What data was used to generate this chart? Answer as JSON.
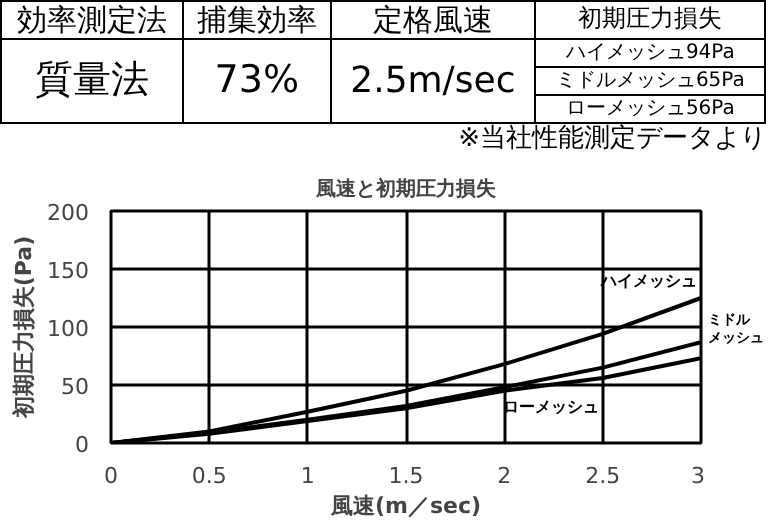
{
  "chart_data": {
    "type": "line",
    "title": "風速と初期圧力損失",
    "xlabel": "風速(m／sec)",
    "ylabel": "初期圧力損失(Pa)",
    "annotations": [
      "効率測定法",
      "捕集効率",
      "定格風速",
      "初期圧力損失",
      "質量法",
      "73%",
      "2.5m/sec",
      "ハイメッシュ94Pa",
      "ミドルメッシュ65Pa",
      "ローメッシュ56Pa",
      "※当社性能測定データより"
    ],
    "x": [
      0,
      0.5,
      1,
      1.5,
      2,
      2.5,
      3
    ],
    "series": [
      {
        "name": "ハイメッシュ",
        "color": "#000000",
        "values": [
          0,
          10,
          27,
          45,
          68,
          94,
          125
        ]
      },
      {
        "name": "ミドルメッシュ",
        "color": "#000000",
        "values": [
          0,
          9,
          20,
          32,
          48,
          65,
          87
        ]
      },
      {
        "name": "ローメッシュ",
        "color": "#000000",
        "values": [
          0,
          8,
          19,
          30,
          45,
          56,
          73
        ]
      }
    ],
    "xlim": [
      0,
      3
    ],
    "ylim": [
      0,
      200
    ],
    "xticks": [
      0,
      0.5,
      1,
      1.5,
      2,
      2.5,
      3
    ],
    "yticks": [
      0,
      50,
      100,
      150,
      200
    ],
    "grid": true,
    "marker": "none",
    "line_style": "solid"
  }
}
